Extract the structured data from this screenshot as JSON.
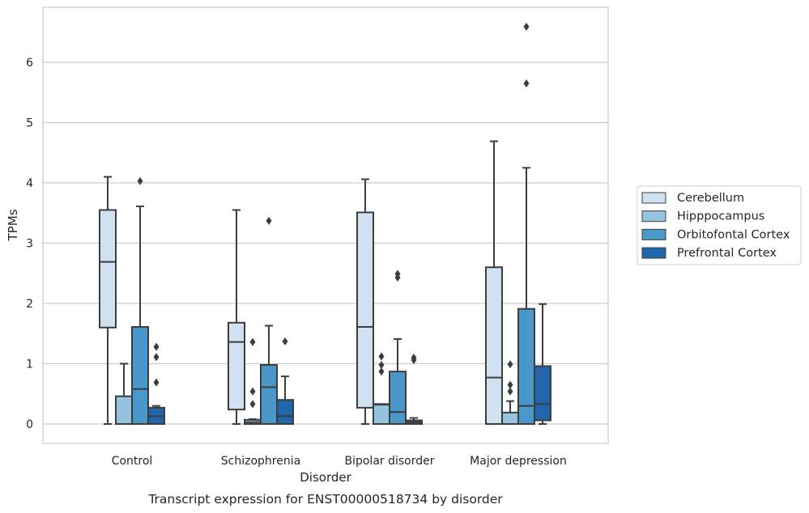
{
  "chart_data": {
    "type": "box",
    "caption": "Transcript expression for ENST00000518734 by disorder",
    "xlabel": "Disorder",
    "ylabel": "TPMs",
    "ylim": [
      -0.32,
      6.9
    ],
    "yticks": [
      0,
      1,
      2,
      3,
      4,
      5,
      6
    ],
    "grid": true,
    "legend_position": "right",
    "categories": [
      "Control",
      "Schizophrenia",
      "Bipolar disorder",
      "Major depression"
    ],
    "series": [
      {
        "name": "Cerebellum",
        "color": "#d0e1f2",
        "boxes": [
          {
            "whislo": 0.0,
            "q1": 1.6,
            "med": 2.69,
            "q3": 3.55,
            "whishi": 4.1,
            "fliers": []
          },
          {
            "whislo": 0.0,
            "q1": 0.24,
            "med": 1.36,
            "q3": 1.68,
            "whishi": 3.55,
            "fliers": []
          },
          {
            "whislo": 0.0,
            "q1": 0.27,
            "med": 1.61,
            "q3": 3.51,
            "whishi": 4.06,
            "fliers": []
          },
          {
            "whislo": 0.0,
            "q1": 0.0,
            "med": 0.77,
            "q3": 2.6,
            "whishi": 4.69,
            "fliers": []
          }
        ]
      },
      {
        "name": "Hipppocampus",
        "color": "#94c4df",
        "boxes": [
          {
            "whislo": 0.0,
            "q1": 0.0,
            "med": 0.0,
            "q3": 0.46,
            "whishi": 1.0,
            "fliers": []
          },
          {
            "whislo": 0.0,
            "q1": 0.0,
            "med": 0.03,
            "q3": 0.07,
            "whishi": 0.08,
            "fliers": [
              1.36,
              0.54,
              0.33
            ]
          },
          {
            "whislo": 0.0,
            "q1": 0.0,
            "med": 0.32,
            "q3": 0.33,
            "whishi": 0.33,
            "fliers": [
              1.12,
              0.98,
              0.87
            ]
          },
          {
            "whislo": 0.0,
            "q1": 0.0,
            "med": 0.0,
            "q3": 0.19,
            "whishi": 0.38,
            "fliers": [
              0.99,
              0.65,
              0.54
            ]
          }
        ]
      },
      {
        "name": "Orbitofontal Cortex",
        "color": "#4a98c9",
        "boxes": [
          {
            "whislo": 0.0,
            "q1": 0.0,
            "med": 0.58,
            "q3": 1.61,
            "whishi": 3.61,
            "fliers": [
              4.03
            ]
          },
          {
            "whislo": 0.0,
            "q1": 0.0,
            "med": 0.61,
            "q3": 0.98,
            "whishi": 1.63,
            "fliers": [
              3.37
            ]
          },
          {
            "whislo": 0.0,
            "q1": 0.0,
            "med": 0.2,
            "q3": 0.87,
            "whishi": 1.41,
            "fliers": [
              2.49,
              2.43
            ]
          },
          {
            "whislo": 0.0,
            "q1": 0.0,
            "med": 0.3,
            "q3": 1.91,
            "whishi": 4.25,
            "fliers": [
              6.59,
              5.65
            ]
          }
        ]
      },
      {
        "name": "Prefrontal Cortex",
        "color": "#2166ac",
        "boxes": [
          {
            "whislo": 0.0,
            "q1": 0.0,
            "med": 0.13,
            "q3": 0.27,
            "whishi": 0.3,
            "fliers": [
              1.28,
              1.11,
              0.69
            ]
          },
          {
            "whislo": 0.0,
            "q1": 0.0,
            "med": 0.13,
            "q3": 0.4,
            "whishi": 0.79,
            "fliers": [
              1.37
            ]
          },
          {
            "whislo": 0.0,
            "q1": 0.0,
            "med": 0.03,
            "q3": 0.06,
            "whishi": 0.1,
            "fliers": [
              1.1,
              1.06
            ]
          },
          {
            "whislo": 0.0,
            "q1": 0.06,
            "med": 0.33,
            "q3": 0.96,
            "whishi": 1.99,
            "fliers": []
          }
        ]
      }
    ]
  }
}
